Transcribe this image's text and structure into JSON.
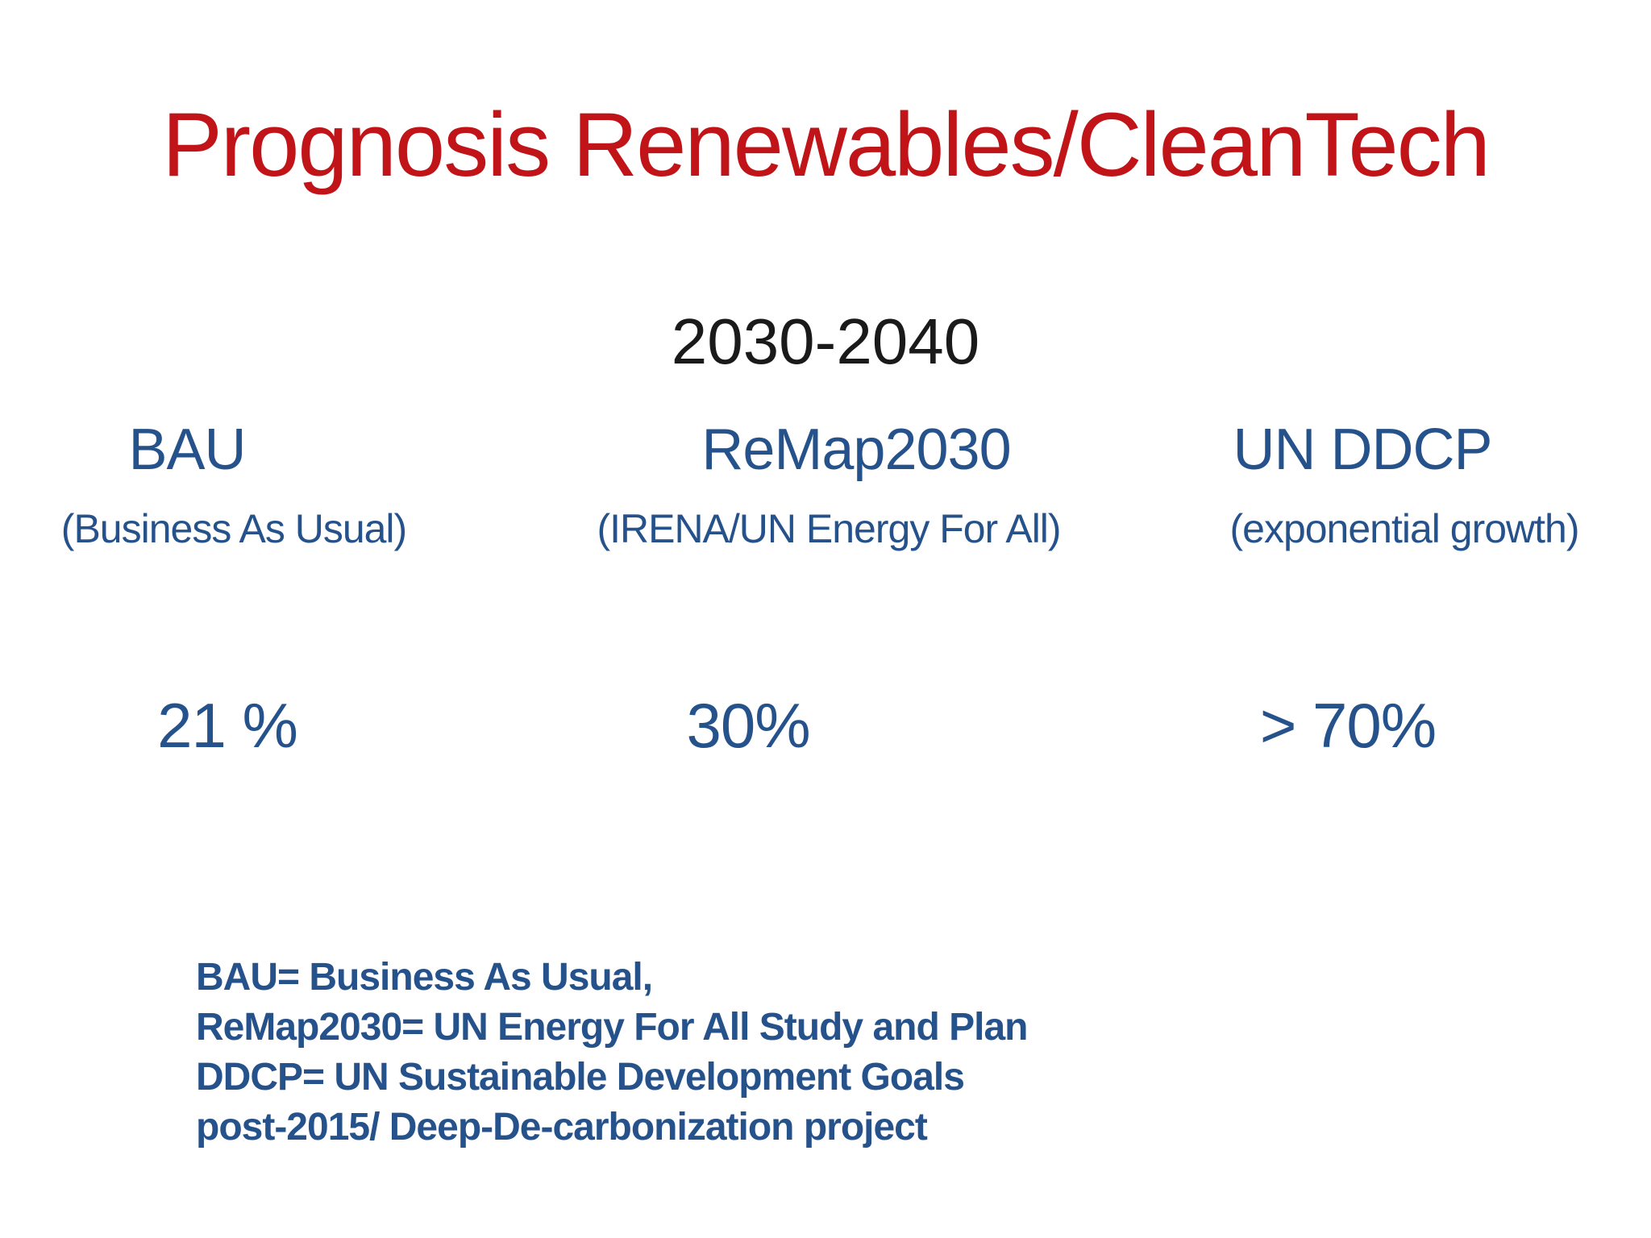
{
  "slide": {
    "title": "Prognosis Renewables/CleanTech",
    "period": "2030-2040",
    "columns": [
      {
        "name": "BAU",
        "subtitle": "(Business As Usual)",
        "value": "21 %"
      },
      {
        "name": "ReMap2030",
        "subtitle": "(IRENA/UN Energy For All)",
        "value": "30%"
      },
      {
        "name": "UN DDCP",
        "subtitle": "(exponential growth)",
        "value": "> 70%"
      }
    ],
    "legend_lines": [
      "BAU= Business As Usual,",
      "ReMap2030= UN Energy For All Study and Plan",
      "DDCP= UN Sustainable Development Goals",
      "post-2015/ Deep-De-carbonization project"
    ],
    "colors": {
      "title_red": "#c11419",
      "text_blue": "#26528c",
      "heading_black": "#1a1a1a",
      "background": "#ffffff"
    }
  }
}
